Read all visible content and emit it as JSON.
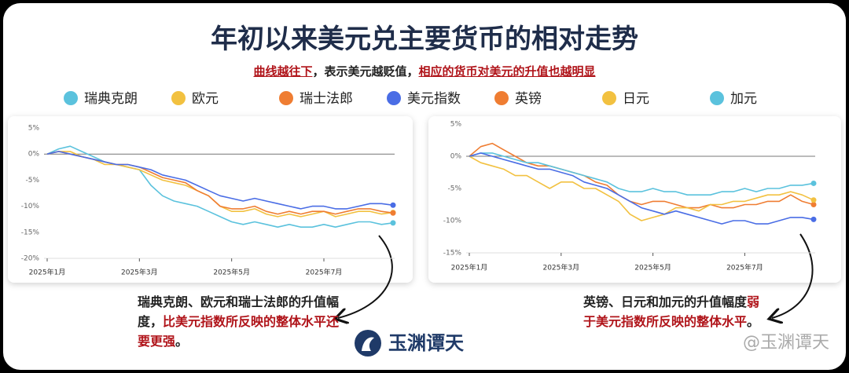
{
  "title": "年初以来美元兑主要货币的相对走势",
  "subtitle": [
    "曲线越往下",
    "，表示美元越贬值，",
    "相应的货币对美元的升值也越明显"
  ],
  "logo": "玉渊谭天",
  "watermark": "@玉渊谭天",
  "chart_data": [
    {
      "type": "line",
      "categories": [
        "2025年1月",
        null,
        null,
        null,
        null,
        null,
        null,
        null,
        "2025年3月",
        null,
        null,
        null,
        null,
        null,
        null,
        null,
        "2025年5月",
        null,
        null,
        null,
        null,
        null,
        null,
        null,
        "2025年7月",
        null,
        null,
        null,
        null,
        null,
        null
      ],
      "ylim": [
        -20,
        5
      ],
      "yticks": [
        {
          "value": 5,
          "label": "5%"
        },
        {
          "value": 0,
          "label": "0%"
        },
        {
          "value": -5,
          "label": "-5%"
        },
        {
          "value": -10,
          "label": "-10%"
        },
        {
          "value": -15,
          "label": "-15%"
        },
        {
          "value": -20,
          "label": "-20%"
        }
      ],
      "series": [
        {
          "name": "瑞典克朗",
          "color": "#5bc2dd",
          "values": [
            0,
            1,
            1.5,
            0.5,
            -0.5,
            -1.5,
            -2,
            -2.5,
            -3,
            -6,
            -8,
            -9,
            -9.5,
            -10,
            -11,
            -12,
            -13,
            -13.5,
            -13,
            -13.5,
            -14,
            -13.5,
            -14,
            -14,
            -13.5,
            -14,
            -13.5,
            -13,
            -13,
            -13.5,
            -13.2
          ]
        },
        {
          "name": "欧元",
          "color": "#f2c140",
          "values": [
            0,
            0.5,
            0.5,
            -0.5,
            -1,
            -2,
            -2,
            -2.5,
            -3,
            -4,
            -5,
            -5.5,
            -6,
            -7,
            -8,
            -10,
            -11,
            -11,
            -10.5,
            -11.5,
            -12,
            -11.5,
            -12,
            -11.5,
            -11,
            -12,
            -11.5,
            -11,
            -11,
            -11.5,
            -11.2
          ]
        },
        {
          "name": "瑞士法郎",
          "color": "#ef7d32",
          "values": [
            0,
            0.5,
            0,
            -0.5,
            -1,
            -1.5,
            -2,
            -2,
            -2.5,
            -3.5,
            -4.5,
            -5,
            -5.5,
            -7,
            -8,
            -10,
            -10.5,
            -10.5,
            -10,
            -11,
            -11.5,
            -11,
            -11.5,
            -11,
            -11,
            -11.5,
            -11,
            -10.5,
            -10.5,
            -11,
            -11.3
          ]
        },
        {
          "name": "美元指数",
          "color": "#4a6de5",
          "values": [
            0,
            0.5,
            0,
            -0.5,
            -1,
            -1.5,
            -2,
            -2,
            -2.5,
            -3,
            -4,
            -4.5,
            -5,
            -6,
            -7,
            -8,
            -8.5,
            -9,
            -8.5,
            -9,
            -9.5,
            -10,
            -10.5,
            -10,
            -10,
            -10.5,
            -10.5,
            -10,
            -9.5,
            -9.5,
            -9.8
          ]
        }
      ],
      "annotation": [
        "瑞典克朗、欧元和瑞士法郎的升值幅度，",
        "比美元指数所反映的整体水平还要更强",
        "。"
      ]
    },
    {
      "type": "line",
      "categories": [
        "2025年1月",
        null,
        null,
        null,
        null,
        null,
        null,
        null,
        "2025年3月",
        null,
        null,
        null,
        null,
        null,
        null,
        null,
        "2025年5月",
        null,
        null,
        null,
        null,
        null,
        null,
        null,
        "2025年7月",
        null,
        null,
        null,
        null,
        null,
        null
      ],
      "ylim": [
        -15,
        5
      ],
      "yticks": [
        {
          "value": 5,
          "label": "5%"
        },
        {
          "value": 0,
          "label": "0%"
        },
        {
          "value": -5,
          "label": "-5%"
        },
        {
          "value": -10,
          "label": "-10%"
        },
        {
          "value": -15,
          "label": "-15%"
        }
      ],
      "series": [
        {
          "name": "英镑",
          "color": "#ef7d32",
          "values": [
            0,
            1.5,
            2,
            1,
            0,
            -1,
            -1.5,
            -1.5,
            -2,
            -2.5,
            -3,
            -4,
            -4.5,
            -6,
            -7,
            -7.5,
            -7,
            -7,
            -7.5,
            -8,
            -8,
            -7.5,
            -8,
            -8,
            -7.5,
            -7.5,
            -7,
            -7,
            -6,
            -7,
            -7.5
          ]
        },
        {
          "name": "日元",
          "color": "#f2c140",
          "values": [
            0,
            -1,
            -1.5,
            -2,
            -3,
            -3,
            -4,
            -5,
            -4,
            -4,
            -5,
            -5,
            -6,
            -7,
            -9,
            -10,
            -9.5,
            -9,
            -8,
            -8,
            -8.5,
            -7.5,
            -7.5,
            -7,
            -7,
            -6.5,
            -6,
            -6,
            -5.5,
            -6,
            -6.8
          ]
        },
        {
          "name": "加元",
          "color": "#5bc2dd",
          "values": [
            0,
            0.5,
            0.5,
            0,
            -0.5,
            -1,
            -1,
            -1.5,
            -2,
            -2.5,
            -3,
            -3.5,
            -4,
            -5,
            -5.5,
            -5.5,
            -5,
            -5.5,
            -5.5,
            -6,
            -6,
            -6,
            -5.5,
            -5.5,
            -5,
            -5.5,
            -5,
            -5,
            -4.5,
            -4.5,
            -4.2
          ]
        },
        {
          "name": "美元指数",
          "color": "#4a6de5",
          "values": [
            0,
            0.5,
            0,
            -0.5,
            -1,
            -1.5,
            -2,
            -2,
            -2.5,
            -3,
            -4,
            -4.5,
            -5,
            -6,
            -7,
            -8,
            -8.5,
            -9,
            -8.5,
            -9,
            -9.5,
            -10,
            -10.5,
            -10,
            -10,
            -10.5,
            -10.5,
            -10,
            -9.5,
            -9.5,
            -9.8
          ]
        }
      ],
      "annotation": [
        "英镑、日元和加元的升值幅度",
        "弱于美元指数所反映的整体水平",
        "。"
      ]
    }
  ]
}
